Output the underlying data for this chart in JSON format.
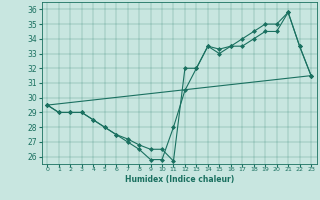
{
  "xlabel": "Humidex (Indice chaleur)",
  "background_color": "#c8e6e0",
  "line_color": "#1a7060",
  "xlim": [
    -0.5,
    23.5
  ],
  "ylim": [
    25.5,
    36.5
  ],
  "xticks": [
    0,
    1,
    2,
    3,
    4,
    5,
    6,
    7,
    8,
    9,
    10,
    11,
    12,
    13,
    14,
    15,
    16,
    17,
    18,
    19,
    20,
    21,
    22,
    23
  ],
  "yticks": [
    26,
    27,
    28,
    29,
    30,
    31,
    32,
    33,
    34,
    35,
    36
  ],
  "line1_x": [
    0,
    1,
    2,
    3,
    4,
    5,
    6,
    7,
    8,
    9,
    10,
    11,
    12,
    13,
    14,
    15,
    16,
    17,
    18,
    19,
    20,
    21,
    22,
    23
  ],
  "line1_y": [
    29.5,
    29.0,
    29.0,
    29.0,
    28.5,
    28.0,
    27.5,
    27.0,
    26.5,
    25.8,
    25.8,
    28.0,
    30.5,
    32.0,
    33.5,
    33.3,
    33.5,
    34.0,
    34.5,
    35.0,
    35.0,
    35.8,
    33.5,
    31.5
  ],
  "line2_x": [
    0,
    1,
    2,
    3,
    4,
    5,
    6,
    7,
    8,
    9,
    10,
    11,
    12,
    13,
    14,
    15,
    16,
    17,
    18,
    19,
    20,
    21,
    22,
    23
  ],
  "line2_y": [
    29.5,
    29.0,
    29.0,
    29.0,
    28.5,
    28.0,
    27.5,
    27.2,
    26.8,
    26.5,
    26.5,
    25.7,
    32.0,
    32.0,
    33.5,
    33.0,
    33.5,
    33.5,
    34.0,
    34.5,
    34.5,
    35.8,
    33.5,
    31.5
  ],
  "line3_x": [
    0,
    23
  ],
  "line3_y": [
    29.5,
    31.5
  ]
}
